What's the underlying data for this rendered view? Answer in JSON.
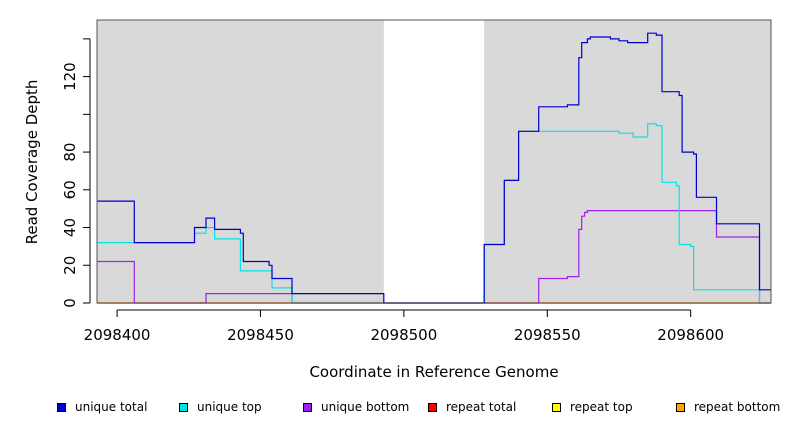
{
  "chart_data": {
    "type": "line",
    "step": true,
    "xlabel": "Coordinate in Reference Genome",
    "ylabel": "Read Coverage Depth",
    "xlim": [
      2098393,
      2098628
    ],
    "ylim": [
      0,
      150
    ],
    "xticks": [
      2098400,
      2098450,
      2098500,
      2098550,
      2098600
    ],
    "yticks": [
      0,
      20,
      40,
      60,
      80,
      120
    ],
    "grid": false,
    "background": "#d9d9d9",
    "shaded_regions": [
      [
        2098393,
        2098493
      ],
      [
        2098528,
        2098628
      ]
    ],
    "legend_position": "bottom",
    "series": [
      {
        "name": "unique total",
        "color": "#0000cc",
        "x": [
          2098393,
          2098406,
          2098406,
          2098427,
          2098427,
          2098431,
          2098431,
          2098434,
          2098434,
          2098443,
          2098443,
          2098444,
          2098444,
          2098453,
          2098453,
          2098454,
          2098454,
          2098461,
          2098461,
          2098493,
          2098493,
          2098528,
          2098528,
          2098535,
          2098535,
          2098540,
          2098540,
          2098547,
          2098547,
          2098557,
          2098557,
          2098561,
          2098561,
          2098562,
          2098562,
          2098564,
          2098564,
          2098565,
          2098565,
          2098572,
          2098572,
          2098575,
          2098575,
          2098578,
          2098578,
          2098585,
          2098585,
          2098588,
          2098588,
          2098590,
          2098590,
          2098596,
          2098596,
          2098597,
          2098597,
          2098601,
          2098601,
          2098602,
          2098602,
          2098609,
          2098609,
          2098624,
          2098624,
          2098628
        ],
        "y": [
          54,
          54,
          32,
          32,
          40,
          40,
          45,
          45,
          39,
          39,
          37,
          37,
          22,
          22,
          20,
          20,
          13,
          13,
          5,
          5,
          0,
          0,
          31,
          31,
          65,
          65,
          91,
          91,
          104,
          104,
          105,
          105,
          130,
          130,
          138,
          138,
          140,
          140,
          141,
          141,
          140,
          140,
          139,
          139,
          138,
          138,
          143,
          143,
          142,
          142,
          112,
          112,
          110,
          110,
          80,
          80,
          79,
          79,
          56,
          56,
          42,
          42,
          7,
          7
        ]
      },
      {
        "name": "unique top",
        "color": "#00e5e5",
        "x": [
          2098393,
          2098427,
          2098427,
          2098431,
          2098431,
          2098434,
          2098434,
          2098443,
          2098443,
          2098454,
          2098454,
          2098461,
          2098461,
          2098493,
          2098493,
          2098528,
          2098528,
          2098535,
          2098535,
          2098540,
          2098540,
          2098565,
          2098565,
          2098575,
          2098575,
          2098580,
          2098580,
          2098585,
          2098585,
          2098588,
          2098588,
          2098590,
          2098590,
          2098595,
          2098595,
          2098596,
          2098596,
          2098600,
          2098600,
          2098601,
          2098601,
          2098624,
          2098624,
          2098628
        ],
        "y": [
          32,
          32,
          37,
          37,
          40,
          40,
          34,
          34,
          17,
          17,
          8,
          8,
          0,
          0,
          0,
          0,
          31,
          31,
          65,
          65,
          91,
          91,
          91,
          91,
          90,
          90,
          88,
          88,
          95,
          95,
          94,
          94,
          64,
          64,
          62,
          62,
          31,
          31,
          30,
          30,
          7,
          7,
          0,
          0
        ]
      },
      {
        "name": "unique bottom",
        "color": "#a020f0",
        "x": [
          2098393,
          2098406,
          2098406,
          2098431,
          2098431,
          2098461,
          2098461,
          2098547,
          2098547,
          2098557,
          2098557,
          2098561,
          2098561,
          2098562,
          2098562,
          2098563,
          2098563,
          2098564,
          2098564,
          2098609,
          2098609,
          2098624,
          2098624,
          2098628
        ],
        "y": [
          22,
          22,
          0,
          0,
          5,
          5,
          0,
          0,
          13,
          13,
          14,
          14,
          39,
          39,
          46,
          46,
          48,
          48,
          49,
          49,
          35,
          35,
          0,
          0
        ]
      },
      {
        "name": "repeat total",
        "color": "#ff0000",
        "x": [
          2098393,
          2098628
        ],
        "y": [
          0,
          0
        ]
      },
      {
        "name": "repeat top",
        "color": "#ffff00",
        "x": [
          2098393,
          2098628
        ],
        "y": [
          0,
          0
        ]
      },
      {
        "name": "repeat bottom",
        "color": "#ffa500",
        "x": [
          2098393,
          2098628
        ],
        "y": [
          0,
          0
        ]
      }
    ]
  }
}
